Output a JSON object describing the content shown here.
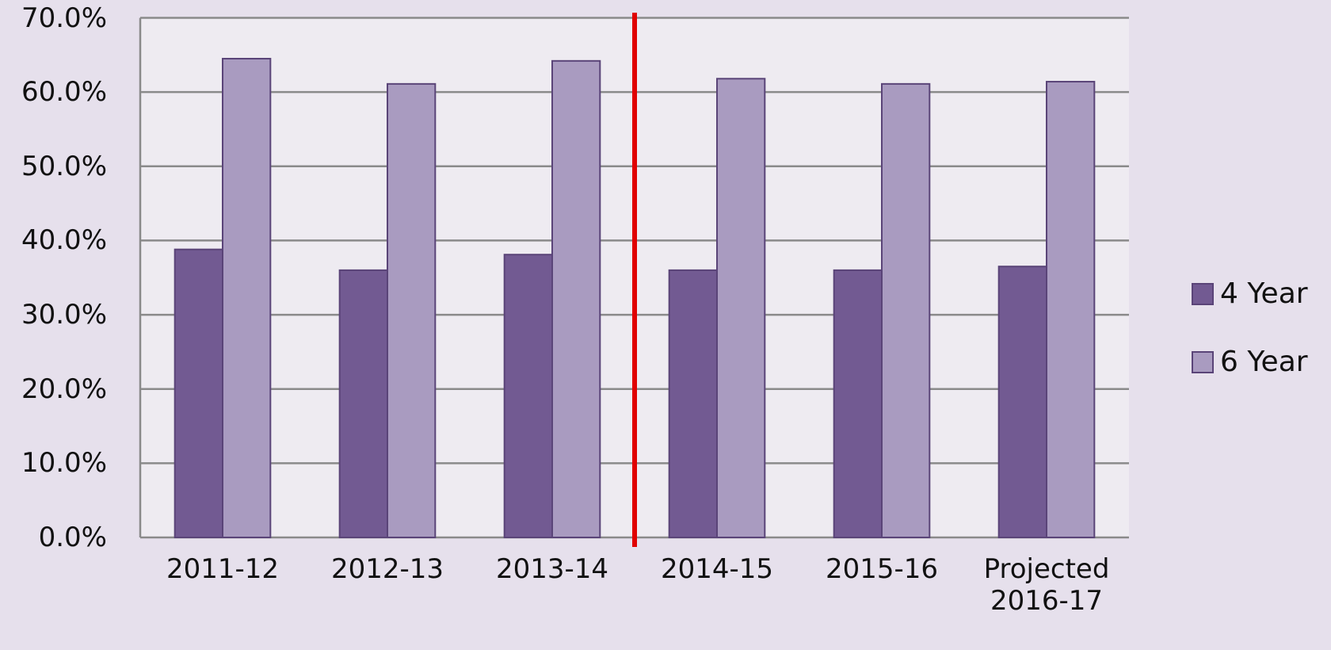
{
  "chart_data": {
    "type": "bar",
    "categories": [
      "2011-12",
      "2012-13",
      "2013-14",
      "2014-15",
      "2015-16",
      "Projected 2016-17"
    ],
    "series": [
      {
        "name": "4 Year",
        "color": "#725a92",
        "values": [
          38.8,
          36.0,
          38.1,
          36.0,
          36.0,
          36.5
        ]
      },
      {
        "name": "6 Year",
        "color": "#a99bc0",
        "values": [
          64.5,
          61.1,
          64.2,
          61.8,
          61.1,
          61.4
        ]
      }
    ],
    "ylim": [
      0,
      70
    ],
    "yticks": [
      {
        "value": 0,
        "label": "0.0%"
      },
      {
        "value": 10,
        "label": "10.0%"
      },
      {
        "value": 20,
        "label": "20.0%"
      },
      {
        "value": 30,
        "label": "30.0%"
      },
      {
        "value": 40,
        "label": "40.0%"
      },
      {
        "value": 50,
        "label": "50.0%"
      },
      {
        "value": 60,
        "label": "60.0%"
      },
      {
        "value": 70,
        "label": "70.0%"
      }
    ],
    "grid": true,
    "legend": "right"
  }
}
